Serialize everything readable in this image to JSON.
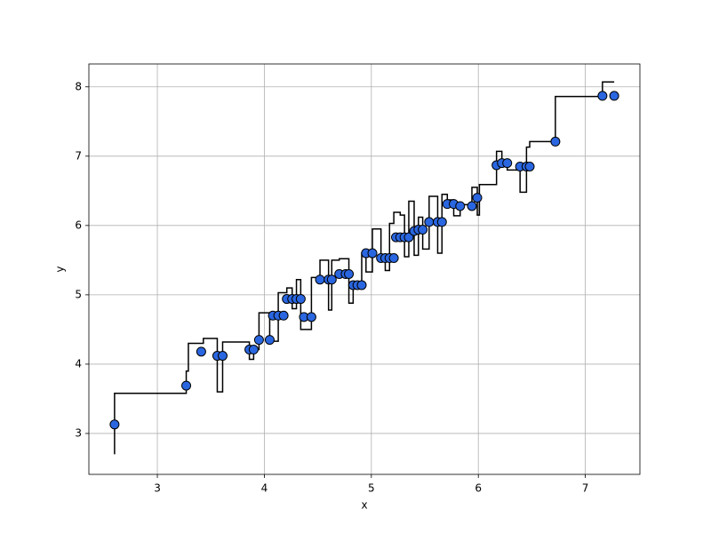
{
  "chart_data": {
    "type": "scatter",
    "xlabel": "x",
    "ylabel": "y",
    "xlim": [
      2.36,
      7.51
    ],
    "ylim": [
      2.41,
      8.33
    ],
    "xticks": [
      3,
      4,
      5,
      6,
      7
    ],
    "yticks": [
      3,
      4,
      5,
      6,
      7,
      8
    ],
    "grid": true,
    "series": [
      {
        "type": "step",
        "color": "#000000",
        "x": [
          2.6,
          2.6,
          3.27,
          3.29,
          3.43,
          3.56,
          3.61,
          3.86,
          3.9,
          3.95,
          4.05,
          4.13,
          4.21,
          4.26,
          4.3,
          4.34,
          4.37,
          4.44,
          4.52,
          4.6,
          4.63,
          4.7,
          4.79,
          4.83,
          4.91,
          4.95,
          5.01,
          5.09,
          5.13,
          5.17,
          5.21,
          5.27,
          5.31,
          5.35,
          5.4,
          5.44,
          5.48,
          5.54,
          5.62,
          5.66,
          5.71,
          5.77,
          5.83,
          5.94,
          5.99,
          6.01,
          6.17,
          6.22,
          6.27,
          6.39,
          6.45,
          6.48,
          6.72,
          7.16,
          7.27
        ],
        "values": [
          2.7,
          3.58,
          3.9,
          4.3,
          4.37,
          3.6,
          4.32,
          4.07,
          4.21,
          4.74,
          4.33,
          5.03,
          5.1,
          4.8,
          5.22,
          4.5,
          4.5,
          5.25,
          5.5,
          4.78,
          5.5,
          5.52,
          4.88,
          5.12,
          5.6,
          5.33,
          5.95,
          5.58,
          5.35,
          6.03,
          6.19,
          6.15,
          5.55,
          6.35,
          5.57,
          6.12,
          5.66,
          6.42,
          5.6,
          6.45,
          6.37,
          6.14,
          6.3,
          6.55,
          6.15,
          6.59,
          7.07,
          6.9,
          6.8,
          6.48,
          7.13,
          7.21,
          7.86,
          8.07,
          8.07
        ]
      },
      {
        "type": "scatter",
        "color": "#2a66e0",
        "edgecolor": "#000000",
        "x": [
          2.6,
          3.27,
          3.41,
          3.56,
          3.61,
          3.86,
          3.9,
          3.95,
          4.05,
          4.08,
          4.13,
          4.18,
          4.21,
          4.26,
          4.3,
          4.34,
          4.37,
          4.44,
          4.52,
          4.6,
          4.63,
          4.7,
          4.76,
          4.79,
          4.83,
          4.87,
          4.91,
          4.95,
          5.01,
          5.09,
          5.13,
          5.17,
          5.21,
          5.23,
          5.27,
          5.31,
          5.35,
          5.4,
          5.44,
          5.48,
          5.54,
          5.62,
          5.66,
          5.71,
          5.77,
          5.83,
          5.94,
          5.99,
          6.17,
          6.22,
          6.27,
          6.39,
          6.45,
          6.48,
          6.72,
          7.16,
          7.27
        ],
        "values": [
          3.13,
          3.69,
          4.18,
          4.12,
          4.12,
          4.21,
          4.21,
          4.35,
          4.35,
          4.7,
          4.7,
          4.7,
          4.94,
          4.94,
          4.94,
          4.94,
          4.68,
          4.68,
          5.22,
          5.22,
          5.22,
          5.3,
          5.3,
          5.3,
          5.14,
          5.14,
          5.14,
          5.6,
          5.6,
          5.53,
          5.53,
          5.53,
          5.53,
          5.83,
          5.83,
          5.83,
          5.83,
          5.92,
          5.94,
          5.94,
          6.05,
          6.05,
          6.05,
          6.31,
          6.31,
          6.28,
          6.28,
          6.4,
          6.87,
          6.9,
          6.9,
          6.85,
          6.85,
          6.85,
          7.21,
          7.87,
          7.87
        ]
      }
    ]
  }
}
